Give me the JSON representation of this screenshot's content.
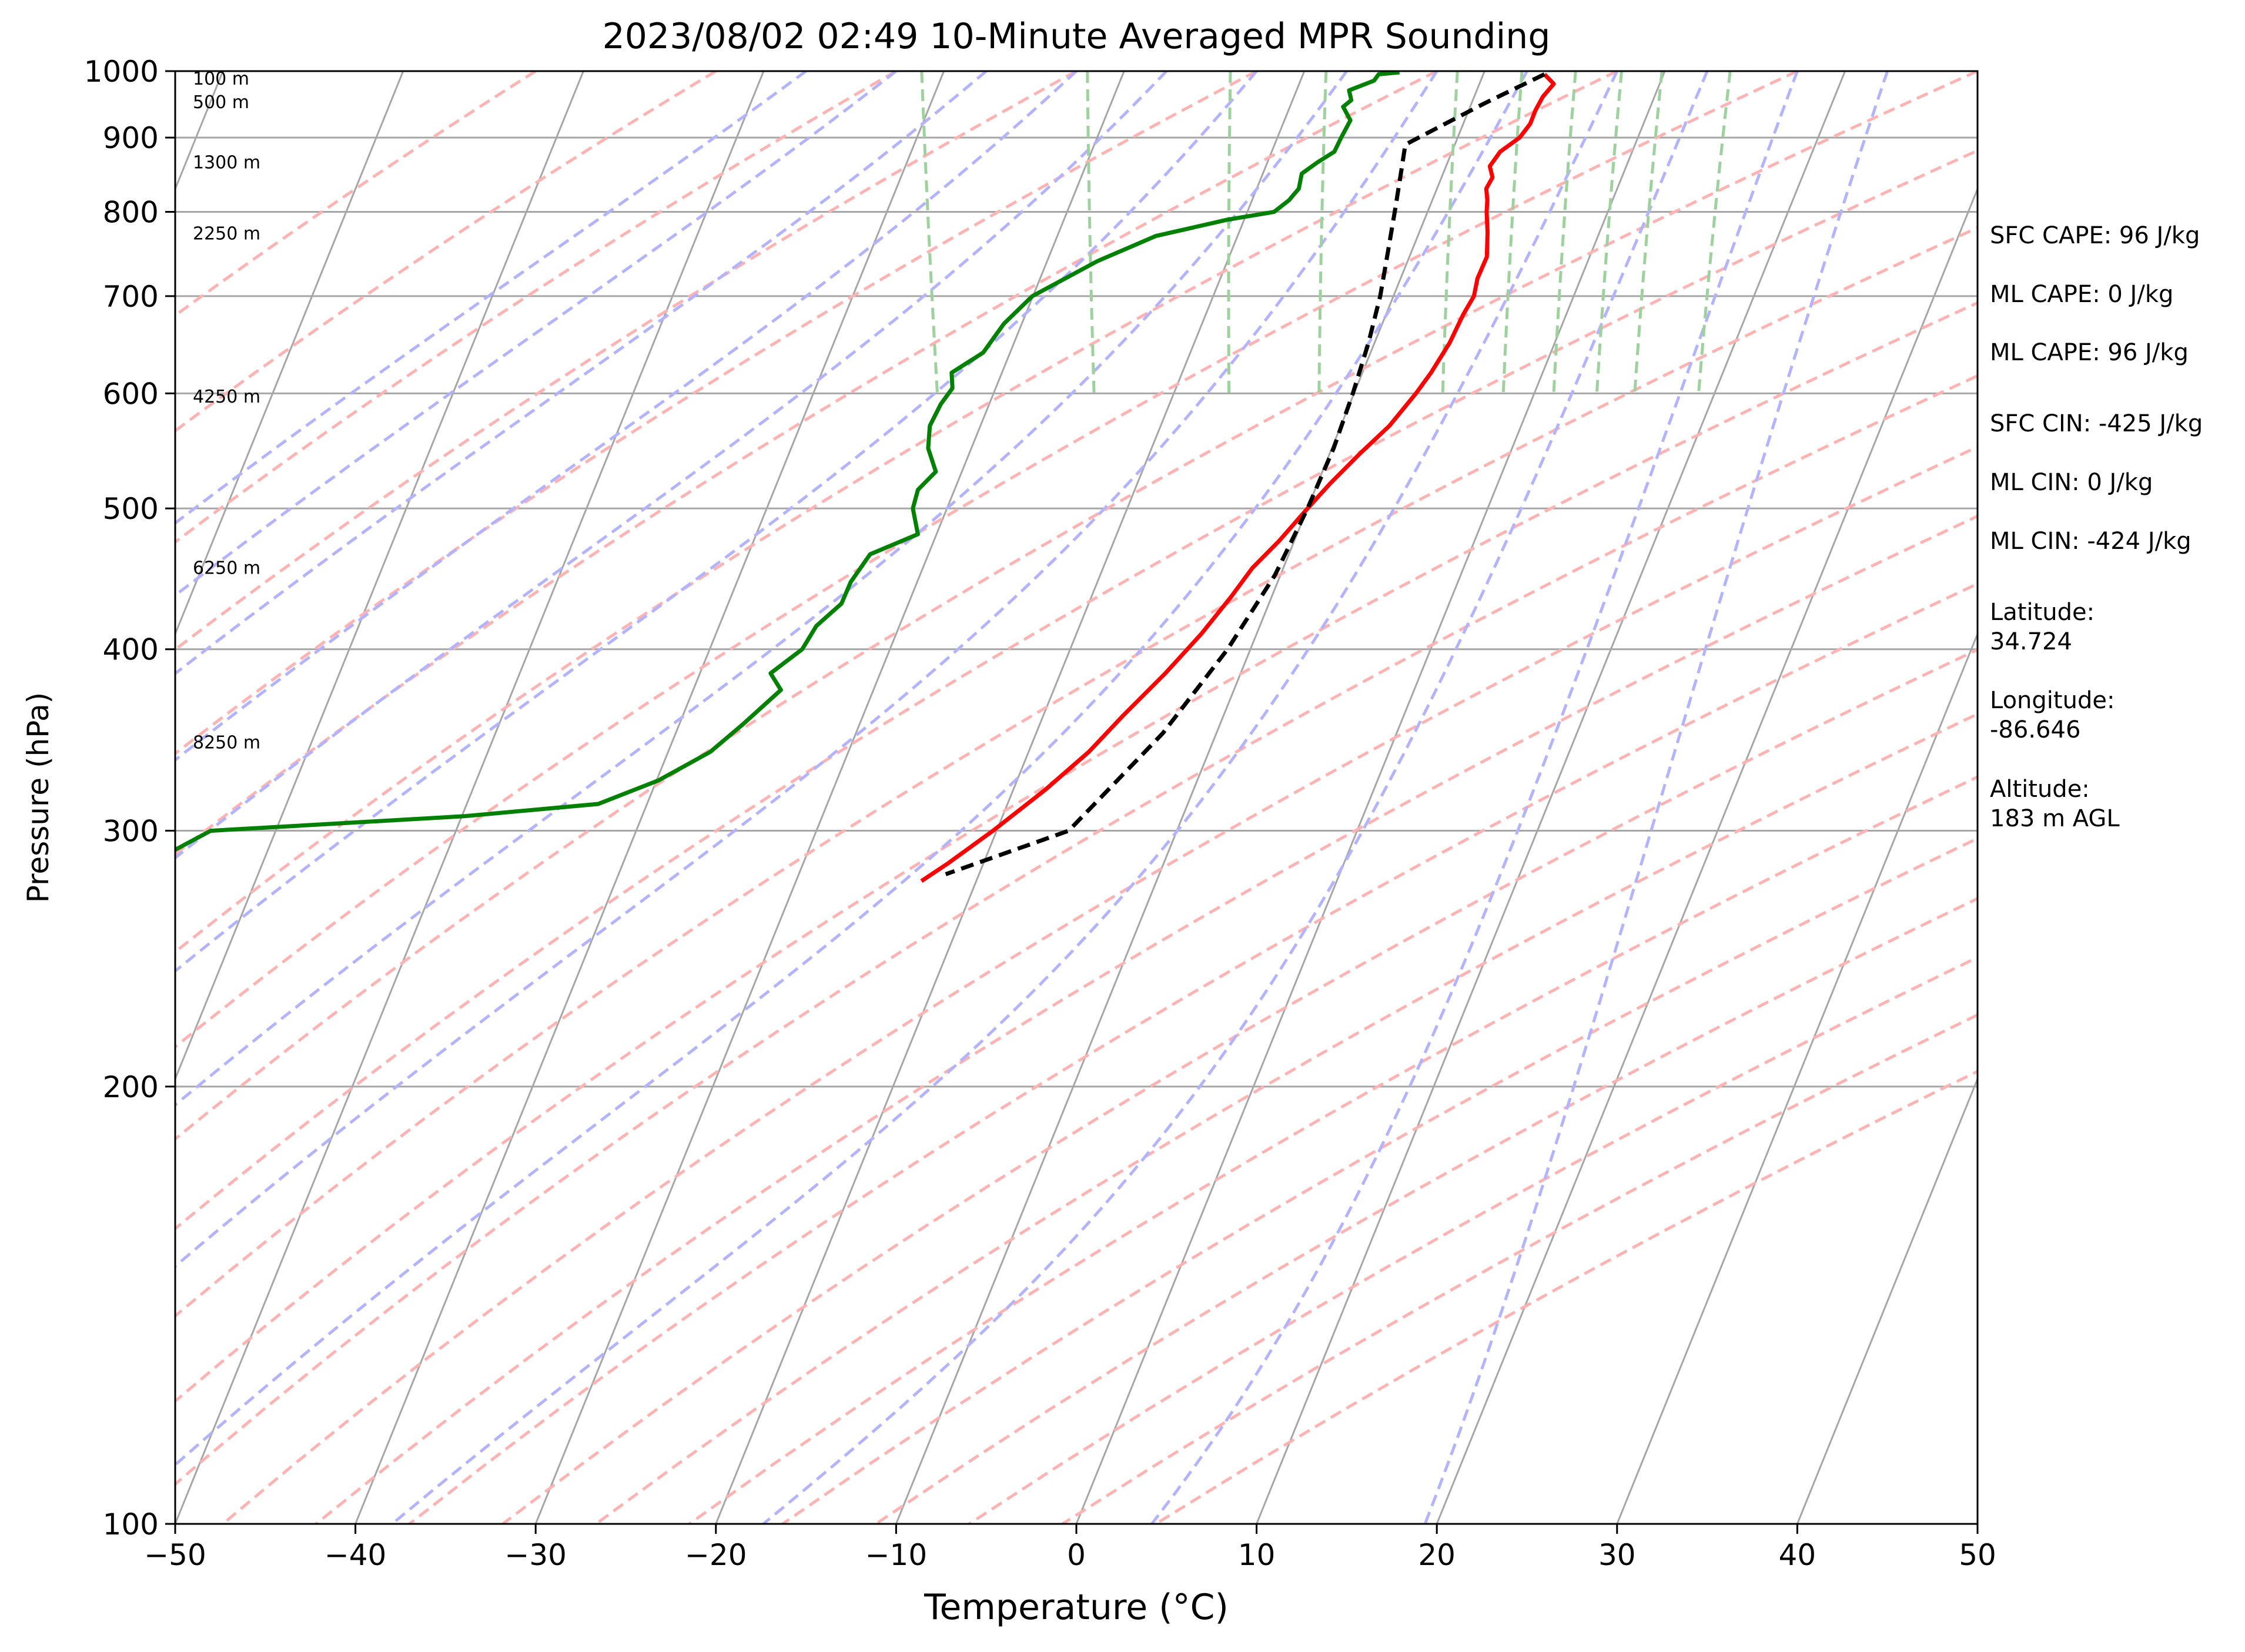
{
  "chart_data": {
    "type": "line",
    "title": "2023/08/02 02:49 10-Minute Averaged MPR Sounding",
    "xlabel": "Temperature (°C)",
    "ylabel": "Pressure (hPa)",
    "xlim": [
      -50,
      50
    ],
    "ylim": [
      1000,
      100
    ],
    "y_scale": "log",
    "grid": true,
    "x_ticks": [
      -50,
      -40,
      -30,
      -20,
      -10,
      0,
      10,
      20,
      30,
      40,
      50
    ],
    "x_tick_labels": [
      "−50",
      "−40",
      "−30",
      "−20",
      "−10",
      "0",
      "10",
      "20",
      "30",
      "40",
      "50"
    ],
    "y_ticks": [
      1000,
      900,
      800,
      700,
      600,
      500,
      400,
      300,
      200,
      100
    ],
    "y_tick_labels": [
      "1000",
      "900",
      "800",
      "700",
      "600",
      "500",
      "400",
      "300",
      "200",
      "100"
    ],
    "colors": {
      "temperature": "#ff0000",
      "dewpoint": "#008000",
      "parcel": "#000000",
      "isotherm": "#a6a6a6",
      "dry_adiabat": "#ffb3b3",
      "moist_adiabat": "#b3b3ff",
      "mixing_ratio": "#9fd19f"
    },
    "series": [
      {
        "style": "solid",
        "color": "#ff0000",
        "points": [
          {
            "p": 995,
            "t": 25.9
          },
          {
            "p": 980,
            "t": 26.2
          },
          {
            "p": 960,
            "t": 25.3
          },
          {
            "p": 940,
            "t": 24.6
          },
          {
            "p": 920,
            "t": 24.0
          },
          {
            "p": 900,
            "t": 23.1
          },
          {
            "p": 880,
            "t": 21.7
          },
          {
            "p": 860,
            "t": 20.8
          },
          {
            "p": 845,
            "t": 20.7
          },
          {
            "p": 830,
            "t": 20.1
          },
          {
            "p": 815,
            "t": 19.9
          },
          {
            "p": 800,
            "t": 19.6
          },
          {
            "p": 775,
            "t": 19.2
          },
          {
            "p": 745,
            "t": 18.6
          },
          {
            "p": 720,
            "t": 17.6
          },
          {
            "p": 700,
            "t": 17.0
          },
          {
            "p": 680,
            "t": 16.0
          },
          {
            "p": 650,
            "t": 14.6
          },
          {
            "p": 620,
            "t": 12.9
          },
          {
            "p": 600,
            "t": 11.6
          },
          {
            "p": 570,
            "t": 9.4
          },
          {
            "p": 545,
            "t": 7.1
          },
          {
            "p": 520,
            "t": 4.8
          },
          {
            "p": 500,
            "t": 3.0
          },
          {
            "p": 475,
            "t": 0.7
          },
          {
            "p": 455,
            "t": -1.4
          },
          {
            "p": 435,
            "t": -3.2
          },
          {
            "p": 410,
            "t": -5.7
          },
          {
            "p": 385,
            "t": -8.6
          },
          {
            "p": 360,
            "t": -11.9
          },
          {
            "p": 340,
            "t": -14.6
          },
          {
            "p": 320,
            "t": -17.9
          },
          {
            "p": 300,
            "t": -21.7
          },
          {
            "p": 285,
            "t": -24.9
          },
          {
            "p": 277,
            "t": -26.8
          }
        ]
      },
      {
        "style": "solid",
        "color": "#008000",
        "points": [
          {
            "p": 998,
            "t": 17.9
          },
          {
            "p": 995,
            "t": 16.7
          },
          {
            "p": 985,
            "t": 16.3
          },
          {
            "p": 970,
            "t": 14.7
          },
          {
            "p": 955,
            "t": 14.6
          },
          {
            "p": 945,
            "t": 14.0
          },
          {
            "p": 925,
            "t": 14.1
          },
          {
            "p": 900,
            "t": 13.2
          },
          {
            "p": 880,
            "t": 12.5
          },
          {
            "p": 865,
            "t": 11.3
          },
          {
            "p": 850,
            "t": 10.2
          },
          {
            "p": 830,
            "t": 9.7
          },
          {
            "p": 815,
            "t": 8.9
          },
          {
            "p": 800,
            "t": 7.8
          },
          {
            "p": 790,
            "t": 5.0
          },
          {
            "p": 770,
            "t": 0.7
          },
          {
            "p": 740,
            "t": -3.1
          },
          {
            "p": 700,
            "t": -7.5
          },
          {
            "p": 670,
            "t": -9.7
          },
          {
            "p": 640,
            "t": -11.5
          },
          {
            "p": 620,
            "t": -13.7
          },
          {
            "p": 605,
            "t": -14.0
          },
          {
            "p": 590,
            "t": -15.0
          },
          {
            "p": 570,
            "t": -16.1
          },
          {
            "p": 550,
            "t": -16.7
          },
          {
            "p": 530,
            "t": -16.8
          },
          {
            "p": 515,
            "t": -18.2
          },
          {
            "p": 500,
            "t": -18.9
          },
          {
            "p": 480,
            "t": -19.2
          },
          {
            "p": 465,
            "t": -22.3
          },
          {
            "p": 445,
            "t": -24.0
          },
          {
            "p": 430,
            "t": -25.0
          },
          {
            "p": 415,
            "t": -26.9
          },
          {
            "p": 400,
            "t": -28.2
          },
          {
            "p": 385,
            "t": -30.5
          },
          {
            "p": 375,
            "t": -30.3
          },
          {
            "p": 355,
            "t": -33.2
          },
          {
            "p": 340,
            "t": -35.6
          },
          {
            "p": 325,
            "t": -39.1
          },
          {
            "p": 313,
            "t": -43.0
          },
          {
            "p": 307,
            "t": -50.7
          },
          {
            "p": 300,
            "t": -65.1
          },
          {
            "p": 290,
            "t": -67.8
          },
          {
            "p": 285,
            "t": -70.0
          }
        ]
      },
      {
        "style": "dashed",
        "color": "#000000",
        "points": [
          {
            "p": 995,
            "t": 25.9
          },
          {
            "p": 950,
            "t": 21.9
          },
          {
            "p": 900,
            "t": 17.5
          },
          {
            "p": 890,
            "t": 16.6
          },
          {
            "p": 850,
            "t": 15.7
          },
          {
            "p": 800,
            "t": 14.5
          },
          {
            "p": 750,
            "t": 13.2
          },
          {
            "p": 700,
            "t": 11.8
          },
          {
            "p": 650,
            "t": 10.1
          },
          {
            "p": 600,
            "t": 8.1
          },
          {
            "p": 550,
            "t": 5.8
          },
          {
            "p": 500,
            "t": 3.0
          },
          {
            "p": 450,
            "t": -0.3
          },
          {
            "p": 400,
            "t": -4.6
          },
          {
            "p": 350,
            "t": -10.1
          },
          {
            "p": 300,
            "t": -17.5
          },
          {
            "p": 280,
            "t": -25.3
          }
        ]
      }
    ],
    "height_labels": [
      {
        "p": 988,
        "text": "100 m"
      },
      {
        "p": 952,
        "text": "500 m"
      },
      {
        "p": 865,
        "text": "1300 m"
      },
      {
        "p": 773,
        "text": "2250 m"
      },
      {
        "p": 597,
        "text": "4250 m"
      },
      {
        "p": 455,
        "text": "6250 m"
      },
      {
        "p": 345,
        "text": "8250 m"
      }
    ],
    "side_text": [
      "SFC CAPE: 96 J/kg",
      "ML CAPE: 0 J/kg",
      "ML CAPE: 96 J/kg",
      "SFC CIN: -425 J/kg",
      "ML CIN: 0 J/kg",
      "ML CIN: -424 J/kg",
      "Latitude:",
      "34.724",
      "Longitude:",
      "-86.646",
      "Altitude:",
      "183 m AGL"
    ]
  }
}
